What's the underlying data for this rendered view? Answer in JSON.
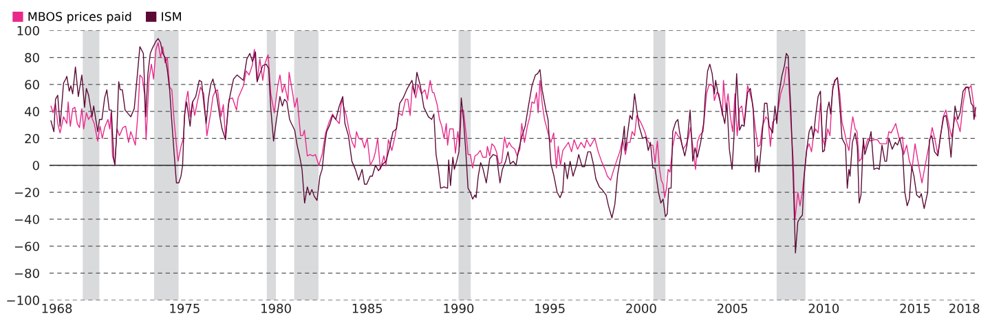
{
  "chart_data": {
    "type": "line",
    "series": [
      {
        "name": "MBOS prices paid",
        "color": "#e8288a",
        "x": [
          1968.18,
          1968.3,
          1968.43,
          1968.55,
          1968.68,
          1968.87,
          1969.05,
          1969.12,
          1969.24,
          1969.37,
          1969.49,
          1969.62,
          1969.74,
          1969.87,
          1969.97,
          1970.12,
          1970.24,
          1970.37,
          1970.55,
          1970.74,
          1970.87,
          1970.99,
          1971.12,
          1971.3,
          1971.4,
          1971.47,
          1971.55,
          1971.68,
          1971.8,
          1971.93,
          1972.12,
          1972.27,
          1972.43,
          1972.55,
          1972.68,
          1972.8,
          1972.93,
          1973.05,
          1973.18,
          1973.3,
          1973.39,
          1973.55,
          1973.68,
          1973.8,
          1973.93,
          1974.05,
          1974.18,
          1974.3,
          1974.43,
          1974.55,
          1974.68,
          1974.8,
          1974.93,
          1975.14,
          1975.3,
          1975.43,
          1975.55,
          1975.68,
          1975.8,
          1975.93,
          1976.05,
          1976.18,
          1976.37,
          1976.55,
          1976.72,
          1976.93,
          1977.05,
          1977.18,
          1977.3,
          1977.49,
          1977.62,
          1977.74,
          1977.93,
          1978.12,
          1978.34,
          1978.43,
          1978.72,
          1978.87,
          1979.03,
          1979.2,
          1979.32,
          1979.47,
          1979.62,
          1979.78,
          1979.91,
          1980.07,
          1980.22,
          1980.41,
          1980.6,
          1980.72,
          1980.85,
          1980.97,
          1981.16,
          1981.22,
          1981.41,
          1981.53,
          1981.66,
          1981.85,
          1981.97,
          1982.06,
          1982.22,
          1982.37,
          1982.53,
          1982.66,
          1982.85,
          1983.03,
          1983.22,
          1983.41,
          1983.6,
          1983.78,
          1983.97,
          1984.1,
          1984.35,
          1984.53,
          1984.68,
          1984.82,
          1984.91,
          1985.03,
          1985.22,
          1985.35,
          1985.5,
          1985.67,
          1985.85,
          1985.95,
          1986.07,
          1986.22,
          1986.41,
          1986.53,
          1986.66,
          1986.85,
          1987.03,
          1987.22,
          1987.41,
          1987.6,
          1987.72,
          1987.85,
          1987.97,
          1988.16,
          1988.28,
          1988.47,
          1988.66,
          1988.78,
          1988.95,
          1989.07,
          1989.15,
          1989.33,
          1989.46,
          1989.58,
          1989.71,
          1989.83,
          1989.9,
          1990.02,
          1990.21,
          1990.33,
          1990.46,
          1990.56,
          1990.65,
          1990.77,
          1990.94,
          1991.02,
          1991.15,
          1991.27,
          1991.4,
          1991.52,
          1991.69,
          1991.83,
          1992.02,
          1992.08,
          1992.21,
          1992.33,
          1992.46,
          1992.58,
          1992.71,
          1992.86,
          1993.02,
          1993.15,
          1993.27,
          1993.4,
          1993.58,
          1993.71,
          1993.86,
          1993.96,
          1994.11,
          1994.27,
          1994.4,
          1994.52,
          1994.65,
          1994.77,
          1994.86,
          1994.96,
          1995.08,
          1995.21,
          1995.4,
          1995.56,
          1995.71,
          1995.86,
          1995.96,
          1996.08,
          1996.21,
          1996.36,
          1996.52,
          1996.69,
          1996.83,
          1997.02,
          1997.21,
          1997.4,
          1997.52,
          1997.71,
          1997.96,
          1998.15,
          1998.33,
          1998.52,
          1998.65,
          1998.83,
          1998.96,
          1999.15,
          1999.33,
          1999.49,
          1999.58,
          1999.64,
          1999.76,
          1999.89,
          2000.01,
          2000.14,
          2000.26,
          2000.39,
          2000.51,
          2000.7,
          2000.83,
          2001.01,
          2001.14,
          2001.26,
          2001.39,
          2001.51,
          2001.6,
          2001.7,
          2001.79,
          2001.89,
          2001.98,
          2002.08,
          2002.23,
          2002.39,
          2002.51,
          2002.64,
          2002.8,
          2002.95,
          2003.08,
          2003.2,
          2003.33,
          2003.48,
          2003.58,
          2003.7,
          2003.89,
          2004.08,
          2004.2,
          2004.33,
          2004.45,
          2004.51,
          2004.64,
          2004.76,
          2004.95,
          2005.01,
          2005.14,
          2005.26,
          2005.39,
          2005.51,
          2005.64,
          2005.76,
          2005.89,
          2006.01,
          2006.14,
          2006.33,
          2006.45,
          2006.58,
          2006.76,
          2006.89,
          2007.01,
          2007.14,
          2007.33,
          2007.45,
          2007.58,
          2007.7,
          2007.89,
          2008.01,
          2008.14,
          2008.33,
          2008.45,
          2008.55,
          2008.7,
          2008.83,
          2008.93,
          2009.08,
          2009.2,
          2009.33,
          2009.45,
          2009.58,
          2009.7,
          2009.83,
          2009.95,
          2010.05,
          2010.19,
          2010.32,
          2010.44,
          2010.57,
          2010.72,
          2010.84,
          2010.97,
          2011.09,
          2011.25,
          2011.38,
          2011.5,
          2011.63,
          2011.75,
          2011.88,
          2012.0,
          2012.09,
          2012.22,
          2012.32,
          2012.44,
          2012.57,
          2012.65,
          2012.75,
          2012.92,
          2013.07,
          2013.25,
          2013.44,
          2013.59,
          2013.75,
          2013.94,
          2014.07,
          2014.19,
          2014.34,
          2014.44,
          2014.63,
          2014.82,
          2014.88,
          2015.04,
          2015.19,
          2015.34,
          2015.5,
          2015.75,
          2015.88,
          2016.07,
          2016.25,
          2016.44,
          2016.59,
          2016.75,
          2016.88,
          2017.04,
          2017.19,
          2017.34,
          2017.5,
          2017.69,
          2017.84,
          2017.97,
          2018.13,
          2018.29,
          2018.44,
          2018.57,
          2018.69,
          2018.82
        ],
        "values": [
          44,
          39,
          46,
          31,
          24,
          36,
          31,
          47,
          29,
          42,
          43,
          31,
          28,
          42,
          27,
          39,
          34,
          37,
          31,
          18,
          29,
          20,
          28,
          34,
          27,
          39,
          7,
          1,
          27,
          22,
          28,
          29,
          17,
          25,
          20,
          15,
          36,
          67,
          65,
          53,
          19,
          64,
          75,
          64,
          86,
          91,
          80,
          88,
          76,
          80,
          58,
          56,
          32,
          3,
          14,
          20,
          46,
          55,
          36,
          47,
          37,
          46,
          58,
          53,
          22,
          39,
          51,
          55,
          56,
          36,
          45,
          20,
          49,
          50,
          41,
          50,
          59,
          70,
          67,
          74,
          86,
          62,
          79,
          63,
          76,
          82,
          53,
          39,
          59,
          67,
          54,
          60,
          48,
          69,
          54,
          43,
          50,
          22,
          22,
          26,
          7,
          8,
          7,
          8,
          0,
          8,
          24,
          32,
          38,
          34,
          31,
          49,
          37,
          24,
          17,
          13,
          25,
          20,
          19,
          13,
          20,
          0,
          5,
          10,
          20,
          -3,
          7,
          0,
          19,
          11,
          22,
          39,
          37,
          49,
          49,
          37,
          59,
          50,
          60,
          53,
          56,
          49,
          63,
          54,
          54,
          45,
          34,
          29,
          20,
          31,
          15,
          27,
          27,
          9,
          25,
          14,
          41,
          41,
          20,
          8,
          8,
          -2,
          7,
          8,
          11,
          6,
          6,
          14,
          7,
          16,
          14,
          10,
          1,
          2,
          21,
          13,
          17,
          14,
          12,
          7,
          12,
          31,
          17,
          29,
          36,
          47,
          46,
          54,
          39,
          63,
          46,
          34,
          24,
          17,
          24,
          -2,
          14,
          0,
          11,
          14,
          17,
          10,
          19,
          12,
          17,
          13,
          19,
          14,
          20,
          10,
          3,
          -3,
          -8,
          -11,
          -5,
          3,
          10,
          19,
          12,
          8,
          17,
          17,
          25,
          22,
          37,
          34,
          31,
          25,
          19,
          15,
          15,
          2,
          18,
          -3,
          -11,
          -14,
          -24,
          -17,
          -3,
          -5,
          14,
          25,
          22,
          20,
          12,
          15,
          20,
          28,
          14,
          -3,
          17,
          22,
          25,
          53,
          59,
          60,
          58,
          48,
          54,
          53,
          37,
          63,
          41,
          53,
          36,
          25,
          53,
          22,
          42,
          44,
          31,
          59,
          54,
          47,
          27,
          14,
          15,
          29,
          36,
          34,
          14,
          32,
          35,
          42,
          53,
          61,
          73,
          72,
          32,
          3,
          -40,
          -20,
          -30,
          -20,
          -4,
          12,
          16,
          10,
          23,
          27,
          24,
          46,
          20,
          14,
          27,
          22,
          54,
          63,
          65,
          53,
          32,
          25,
          17,
          11,
          27,
          36,
          27,
          25,
          3,
          5,
          15,
          12,
          20,
          18,
          19,
          19,
          16,
          16,
          16,
          25,
          24,
          28,
          31,
          20,
          21,
          8,
          15,
          3,
          -2,
          16,
          -4,
          -13,
          1,
          14,
          28,
          19,
          8,
          20,
          36,
          41,
          31,
          21,
          36,
          31,
          25,
          46,
          58,
          57,
          59,
          47,
          36
        ]
      },
      {
        "name": "ISM",
        "color": "#5a0a35",
        "x": [
          1968.18,
          1968.34,
          1968.43,
          1968.55,
          1968.68,
          1968.87,
          1968.99,
          1969.05,
          1969.18,
          1969.27,
          1969.37,
          1969.52,
          1969.68,
          1969.87,
          1970.02,
          1970.12,
          1970.24,
          1970.43,
          1970.52,
          1970.74,
          1970.84,
          1970.97,
          1971.12,
          1971.24,
          1971.37,
          1971.49,
          1971.62,
          1971.68,
          1971.8,
          1971.89,
          1971.97,
          1972.09,
          1972.24,
          1972.55,
          1972.74,
          1972.87,
          1973.05,
          1973.24,
          1973.37,
          1973.49,
          1973.62,
          1973.74,
          1973.93,
          1974.05,
          1974.18,
          1974.3,
          1974.43,
          1974.55,
          1974.68,
          1974.8,
          1974.93,
          1975.05,
          1975.18,
          1975.3,
          1975.39,
          1975.49,
          1975.61,
          1975.8,
          1975.93,
          1976.11,
          1976.3,
          1976.43,
          1976.55,
          1976.68,
          1976.8,
          1976.93,
          1977.05,
          1977.24,
          1977.43,
          1977.55,
          1977.74,
          1977.89,
          1977.99,
          1978.18,
          1978.37,
          1978.72,
          1978.91,
          1979.07,
          1979.22,
          1979.38,
          1979.47,
          1979.62,
          1979.78,
          1979.97,
          1980.1,
          1980.22,
          1980.37,
          1980.53,
          1980.72,
          1980.85,
          1980.97,
          1981.1,
          1981.25,
          1981.35,
          1981.53,
          1981.66,
          1981.81,
          1981.93,
          1982.07,
          1982.22,
          1982.35,
          1982.47,
          1982.6,
          1982.75,
          1982.91,
          1983.03,
          1983.16,
          1983.28,
          1983.45,
          1983.6,
          1983.78,
          1983.97,
          1984.16,
          1984.28,
          1984.47,
          1984.66,
          1984.85,
          1985.03,
          1985.22,
          1985.35,
          1985.47,
          1985.66,
          1985.78,
          1985.95,
          1986.12,
          1986.35,
          1986.53,
          1986.72,
          1986.91,
          1987.1,
          1987.28,
          1987.47,
          1987.66,
          1987.78,
          1987.95,
          1988.1,
          1988.22,
          1988.41,
          1988.6,
          1988.85,
          1989.03,
          1989.15,
          1989.27,
          1989.4,
          1989.52,
          1989.71,
          1989.9,
          1989.96,
          1990.06,
          1990.19,
          1990.27,
          1990.4,
          1990.52,
          1990.65,
          1990.77,
          1990.9,
          1991.02,
          1991.15,
          1991.27,
          1991.4,
          1991.46,
          1991.58,
          1991.71,
          1991.83,
          1992.02,
          1992.21,
          1992.4,
          1992.58,
          1992.77,
          1992.9,
          1993.08,
          1993.21,
          1993.33,
          1993.5,
          1993.65,
          1993.77,
          1993.96,
          1994.15,
          1994.33,
          1994.52,
          1994.71,
          1994.83,
          1994.96,
          1995.08,
          1995.27,
          1995.4,
          1995.56,
          1995.71,
          1995.9,
          1996.06,
          1996.21,
          1996.31,
          1996.46,
          1996.61,
          1996.77,
          1996.96,
          1997.08,
          1997.27,
          1997.4,
          1997.58,
          1997.73,
          1997.9,
          1998.02,
          1998.21,
          1998.36,
          1998.58,
          1998.71,
          1998.9,
          1999.06,
          1999.21,
          1999.4,
          1999.58,
          1999.64,
          1999.76,
          1999.89,
          2000.01,
          2000.14,
          2000.26,
          2000.39,
          2000.58,
          2000.76,
          2000.89,
          2001.01,
          2001.14,
          2001.26,
          2001.45,
          2001.58,
          2001.7,
          2001.83,
          2001.93,
          2002.01,
          2002.14,
          2002.23,
          2002.39,
          2002.51,
          2002.6,
          2002.76,
          2002.89,
          2003.01,
          2003.18,
          2003.33,
          2003.45,
          2003.58,
          2003.76,
          2003.93,
          2004.01,
          2004.14,
          2004.26,
          2004.39,
          2004.51,
          2004.58,
          2004.7,
          2004.83,
          2004.95,
          2005.08,
          2005.2,
          2005.33,
          2005.48,
          2005.58,
          2005.73,
          2005.89,
          2006.01,
          2006.14,
          2006.33,
          2006.48,
          2006.64,
          2006.76,
          2006.86,
          2006.95,
          2007.1,
          2007.26,
          2007.39,
          2007.51,
          2007.7,
          2007.83,
          2007.93,
          2008.05,
          2008.2,
          2008.35,
          2008.45,
          2008.55,
          2008.7,
          2008.83,
          2008.95,
          2009.08,
          2009.2,
          2009.33,
          2009.43,
          2009.55,
          2009.7,
          2009.83,
          2009.93,
          2010.05,
          2010.19,
          2010.32,
          2010.44,
          2010.54,
          2010.69,
          2010.79,
          2010.88,
          2011.0,
          2011.13,
          2011.25,
          2011.38,
          2011.5,
          2011.69,
          2011.79,
          2011.88,
          2011.94,
          2012.07,
          2012.22,
          2012.34,
          2012.44,
          2012.54,
          2012.67,
          2012.75,
          2012.88,
          2013.0,
          2013.09,
          2013.25,
          2013.42,
          2013.54,
          2013.69,
          2013.85,
          2013.94,
          2014.07,
          2014.25,
          2014.42,
          2014.54,
          2014.67,
          2014.82,
          2014.94,
          2015.07,
          2015.19,
          2015.32,
          2015.44,
          2015.59,
          2015.75,
          2015.84,
          2016.0,
          2016.19,
          2016.29,
          2016.42,
          2016.57,
          2016.75,
          2016.88,
          2017.07,
          2017.19,
          2017.32,
          2017.47,
          2017.57,
          2017.69,
          2017.84,
          2017.97,
          2018.13,
          2018.29,
          2018.42,
          2018.57,
          2018.67,
          2018.73,
          2018.82
        ],
        "values": [
          33,
          25,
          49,
          52,
          29,
          61,
          64,
          66,
          55,
          59,
          53,
          73,
          51,
          67,
          43,
          57,
          52,
          36,
          44,
          25,
          34,
          34,
          50,
          56,
          41,
          41,
          5,
          0,
          29,
          62,
          56,
          56,
          41,
          36,
          42,
          61,
          88,
          83,
          36,
          68,
          83,
          87,
          92,
          94,
          91,
          83,
          80,
          71,
          56,
          32,
          8,
          -13,
          -13,
          -8,
          0,
          37,
          47,
          29,
          47,
          51,
          63,
          62,
          46,
          31,
          49,
          60,
          64,
          53,
          36,
          27,
          19,
          44,
          52,
          64,
          67,
          63,
          79,
          83,
          77,
          84,
          62,
          68,
          74,
          75,
          72,
          42,
          18,
          34,
          51,
          44,
          49,
          47,
          34,
          31,
          26,
          15,
          6,
          -3,
          -28,
          -16,
          -22,
          -18,
          -23,
          -26,
          -8,
          -3,
          14,
          25,
          30,
          37,
          34,
          44,
          51,
          31,
          22,
          3,
          -3,
          -11,
          -3,
          -14,
          -14,
          -8,
          -8,
          0,
          -4,
          1,
          3,
          13,
          25,
          27,
          46,
          50,
          56,
          59,
          63,
          53,
          69,
          59,
          43,
          36,
          34,
          38,
          8,
          -3,
          -17,
          -16,
          -17,
          4,
          -15,
          6,
          -3,
          3,
          10,
          50,
          34,
          10,
          -17,
          -20,
          -25,
          -22,
          -24,
          -8,
          2,
          -2,
          -13,
          5,
          8,
          7,
          -13,
          -3,
          3,
          10,
          1,
          3,
          0,
          10,
          21,
          29,
          44,
          59,
          67,
          68,
          71,
          56,
          42,
          34,
          1,
          -7,
          -20,
          -24,
          -19,
          2,
          -10,
          3,
          -8,
          0,
          8,
          -1,
          -1,
          10,
          10,
          0,
          -10,
          -16,
          -18,
          -22,
          -30,
          -39,
          -29,
          -7,
          8,
          29,
          11,
          24,
          37,
          34,
          53,
          41,
          29,
          20,
          21,
          11,
          17,
          -2,
          -2,
          -20,
          -28,
          -25,
          -38,
          -36,
          -17,
          -17,
          25,
          32,
          34,
          25,
          14,
          7,
          15,
          41,
          3,
          13,
          6,
          17,
          32,
          51,
          70,
          75,
          68,
          53,
          63,
          54,
          47,
          39,
          31,
          46,
          12,
          -3,
          20,
          68,
          26,
          30,
          29,
          54,
          57,
          42,
          -5,
          7,
          -5,
          17,
          46,
          46,
          29,
          24,
          44,
          31,
          53,
          66,
          74,
          83,
          81,
          41,
          -10,
          -65,
          -42,
          -39,
          -37,
          -8,
          10,
          25,
          29,
          20,
          36,
          51,
          55,
          10,
          11,
          41,
          47,
          38,
          58,
          63,
          65,
          44,
          20,
          15,
          -17,
          -3,
          -8,
          17,
          24,
          14,
          -28,
          -22,
          20,
          8,
          14,
          19,
          25,
          -3,
          -2,
          -3,
          15,
          3,
          3,
          20,
          12,
          17,
          15,
          20,
          10,
          -20,
          -30,
          -25,
          -1,
          -8,
          -22,
          -24,
          -21,
          -32,
          -20,
          19,
          22,
          10,
          7,
          21,
          36,
          37,
          27,
          6,
          24,
          44,
          34,
          39,
          55,
          58,
          58,
          46,
          44,
          34,
          43
        ]
      }
    ],
    "bands": [
      {
        "axis": "x",
        "from": 1969.92,
        "to": 1970.83,
        "color": "#d9dadc"
      },
      {
        "axis": "x",
        "from": 1973.83,
        "to": 1975.17,
        "color": "#d9dadc"
      },
      {
        "axis": "x",
        "from": 1980.0,
        "to": 1980.5,
        "color": "#d9dadc"
      },
      {
        "axis": "x",
        "from": 1981.5,
        "to": 1982.83,
        "color": "#d9dadc"
      },
      {
        "axis": "x",
        "from": 1990.5,
        "to": 1991.17,
        "color": "#d9dadc"
      },
      {
        "axis": "x",
        "from": 2001.17,
        "to": 2001.83,
        "color": "#d9dadc"
      },
      {
        "axis": "x",
        "from": 2007.92,
        "to": 2009.5,
        "color": "#d9dadc"
      }
    ],
    "ref_lines": [
      {
        "axis": "y",
        "value": 0,
        "color": "#222222",
        "line_style": "solid"
      }
    ],
    "xlim": [
      1968.1,
      2018.9
    ],
    "xticks": [
      {
        "value": 1968.5,
        "label": "1968"
      },
      {
        "value": 1975.5,
        "label": "1975"
      },
      {
        "value": 1980.5,
        "label": "1980"
      },
      {
        "value": 1985.5,
        "label": "1985"
      },
      {
        "value": 1990.5,
        "label": "1990"
      },
      {
        "value": 1995.5,
        "label": "1995"
      },
      {
        "value": 2000.5,
        "label": "2000"
      },
      {
        "value": 2005.5,
        "label": "2005"
      },
      {
        "value": 2010.5,
        "label": "2010"
      },
      {
        "value": 2015.5,
        "label": "2015"
      },
      {
        "value": 2018.2,
        "label": "2018"
      }
    ],
    "ylim": [
      -100,
      100
    ],
    "yticks": [
      -100,
      -80,
      -60,
      -40,
      -20,
      0,
      20,
      40,
      60,
      80,
      100
    ],
    "grid": "y",
    "legend": "top left",
    "line_style": "solid",
    "marker": "none"
  }
}
